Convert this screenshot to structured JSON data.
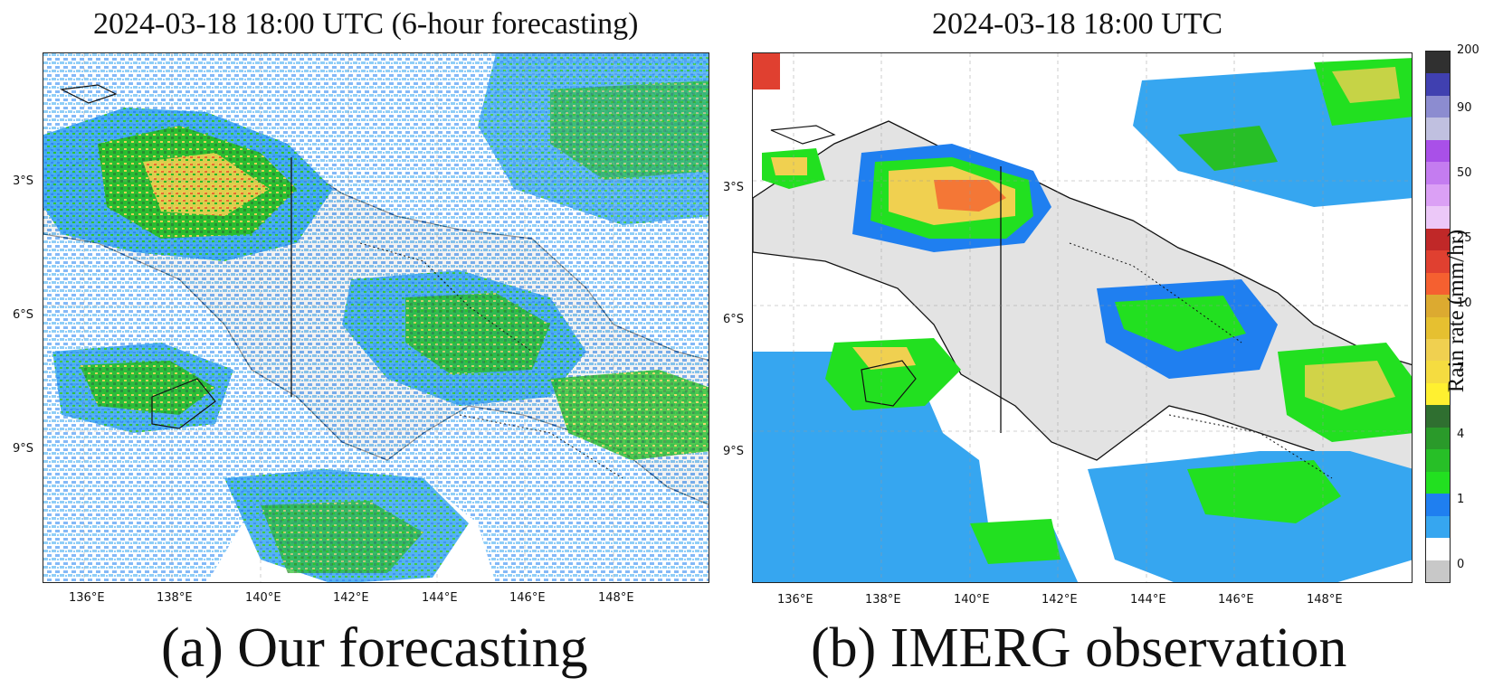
{
  "panels": [
    {
      "id": "forecast",
      "title": "2024-03-18 18:00 UTC (6-hour forecasting)",
      "caption": "(a) Our forecasting",
      "lat_labels": [
        "3°S",
        "6°S",
        "9°S"
      ],
      "lon_labels": [
        "136°E",
        "138°E",
        "140°E",
        "142°E",
        "144°E",
        "146°E",
        "148°E"
      ]
    },
    {
      "id": "observation",
      "title": "2024-03-18 18:00 UTC",
      "caption": "(b) IMERG observation",
      "lat_labels": [
        "3°S",
        "6°S",
        "9°S"
      ],
      "lon_labels": [
        "136°E",
        "138°E",
        "140°E",
        "142°E",
        "144°E",
        "146°E",
        "148°E"
      ]
    }
  ],
  "extent": {
    "lon": [
      135,
      150
    ],
    "lat": [
      -12,
      0
    ]
  },
  "colorbar": {
    "label": "Rain rate (mm/hr)",
    "tick_labels": [
      "0",
      "1",
      "4",
      "7",
      "10",
      "25",
      "50",
      "90",
      "200"
    ],
    "colors": [
      "#c8c8c8",
      "#ffffff",
      "#36a6f0",
      "#1f7ff0",
      "#22e020",
      "#27bf27",
      "#2a9a2a",
      "#2f6f30",
      "#fff030",
      "#f5dc40",
      "#f0d050",
      "#e6c030",
      "#dcaa30",
      "#f56030",
      "#e04030",
      "#c02828",
      "#ecc8f8",
      "#dba0f5",
      "#c47cf0",
      "#a950e8",
      "#c0c0e0",
      "#8c8cd0",
      "#4040b0",
      "#303030"
    ]
  },
  "colors": {
    "land": "#e3e3e3",
    "light_rain": "#36a6f0",
    "moderate_rain": "#1f7ff0",
    "green": "#22c022",
    "dark_green": "#2a8a2a",
    "yellow": "#f0d050",
    "orange": "#f56030"
  }
}
